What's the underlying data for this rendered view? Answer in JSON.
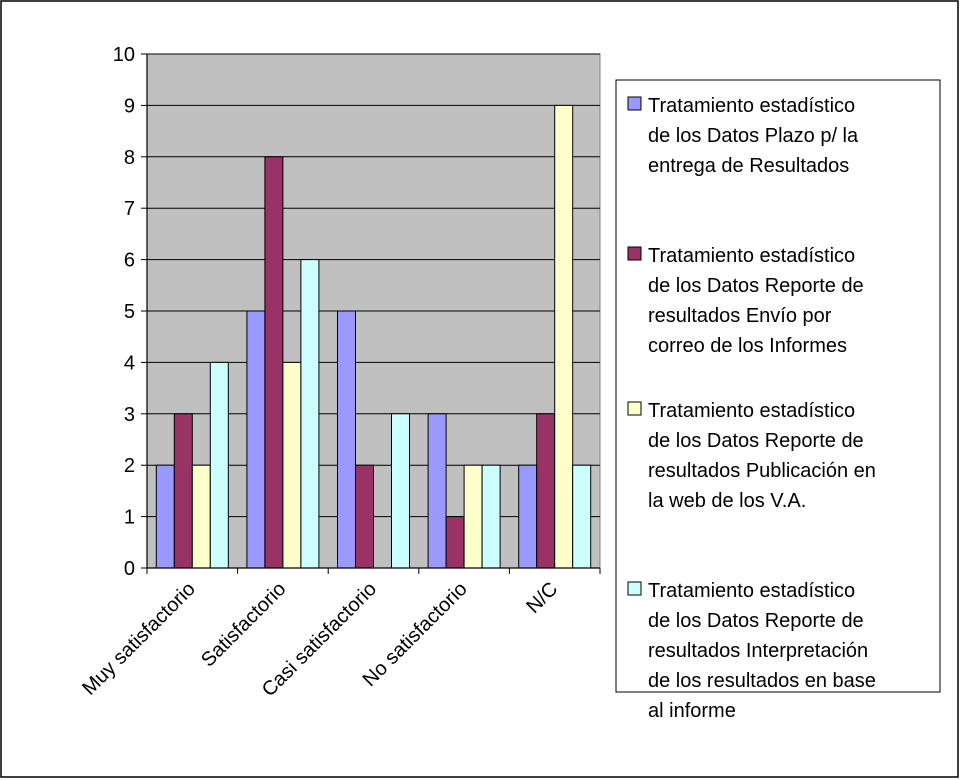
{
  "chart_data": {
    "type": "bar",
    "categories": [
      "Muy satisfactorio",
      "Satisfactorio",
      "Casi satisfactorio",
      "No satisfactorio",
      "N/C"
    ],
    "series": [
      {
        "name": "Tratamiento estadístico de los Datos Plazo p/ la entrega de Resultados",
        "legend_lines": [
          "Tratamiento estadístico",
          "de los Datos Plazo p/ la",
          "entrega de Resultados"
        ],
        "color": "#9999ff",
        "values": [
          2,
          5,
          5,
          3,
          2
        ]
      },
      {
        "name": "Tratamiento estadístico de los Datos Reporte de resultados Envío por correo de los Informes",
        "legend_lines": [
          "Tratamiento estadístico",
          "de los Datos Reporte de",
          "resultados Envío por",
          "correo de los Informes"
        ],
        "color": "#993366",
        "values": [
          3,
          8,
          2,
          1,
          3
        ]
      },
      {
        "name": "Tratamiento estadístico de los Datos Reporte de resultados Publicación en la web de los V.A.",
        "legend_lines": [
          "Tratamiento estadístico",
          "de los Datos Reporte de",
          "resultados Publicación en",
          "la web de los V.A."
        ],
        "color": "#ffffcc",
        "values": [
          2,
          4,
          0,
          2,
          9
        ]
      },
      {
        "name": "Tratamiento estadístico de los Datos Reporte de resultados Interpretación de los resultados en base al informe",
        "legend_lines": [
          "Tratamiento estadístico",
          "de los Datos Reporte de",
          "resultados Interpretación",
          "de los resultados en base",
          "al informe"
        ],
        "color": "#ccffff",
        "values": [
          4,
          6,
          3,
          2,
          2
        ]
      }
    ],
    "ylim": [
      0,
      10
    ],
    "yticks": [
      "0",
      "1",
      "2",
      "3",
      "4",
      "5",
      "6",
      "7",
      "8",
      "9",
      "10"
    ],
    "grid": true,
    "plot_background": "#c0c0c0",
    "legend_position": "right"
  }
}
